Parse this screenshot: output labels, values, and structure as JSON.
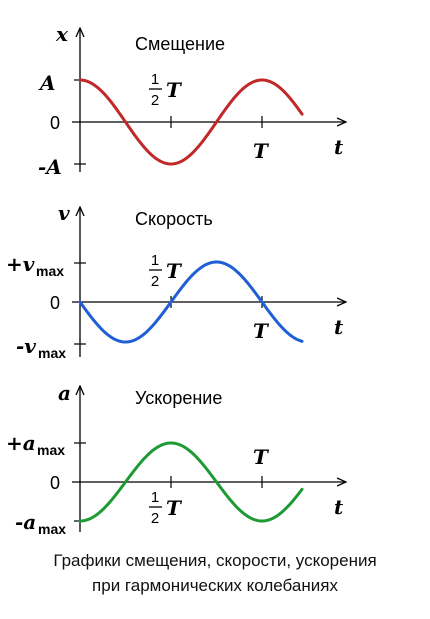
{
  "panels": [
    {
      "title": "Смещение",
      "y_axis_label": "x",
      "x_axis_label": "t",
      "pos_label": "A",
      "neg_label": "-A",
      "zero_label": "0",
      "half_period_num": "1",
      "half_period_den": "2",
      "half_period_T": "T",
      "period_label": "T",
      "curve_color": "#c0282a",
      "function": "cos"
    },
    {
      "title": "Скорость",
      "y_axis_label": "v",
      "x_axis_label": "t",
      "pos_label_sign": "+v",
      "pos_label_sub": "max",
      "neg_label_sign": "-v",
      "neg_label_sub": "max",
      "zero_label": "0",
      "half_period_num": "1",
      "half_period_den": "2",
      "half_period_T": "T",
      "period_label": "T",
      "curve_color": "#1f5fd6",
      "function": "-sin"
    },
    {
      "title": "Ускорение",
      "y_axis_label": "a",
      "x_axis_label": "t",
      "pos_label_sign": "+a",
      "pos_label_sub": "max",
      "neg_label_sign": "-a",
      "neg_label_sub": "max",
      "zero_label": "0",
      "half_period_num": "1",
      "half_period_den": "2",
      "half_period_T": "T",
      "period_label": "T",
      "curve_color": "#1e9a35",
      "function": "-cos"
    }
  ],
  "caption": {
    "line1": "Графики смещения, скорости, ускорения",
    "line2": "при гармонических колебаниях"
  }
}
